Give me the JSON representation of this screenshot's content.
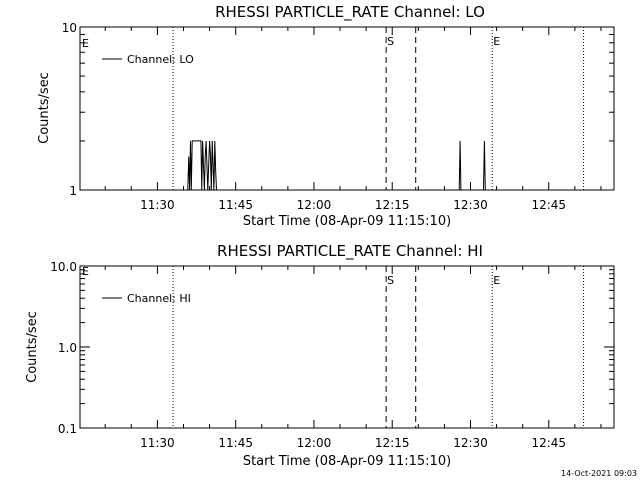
{
  "chart_data": [
    {
      "type": "line",
      "title": "RHESSI PARTICLE_RATE Channel: LO",
      "xlabel": "Start Time (08-Apr-09 11:15:10)",
      "ylabel": "Counts/sec",
      "yscale": "log",
      "xlim": [
        "11:15:10",
        "12:57:30"
      ],
      "ylim": [
        1,
        10
      ],
      "x_ticks": [
        "11:30",
        "11:45",
        "12:00",
        "12:15",
        "12:30",
        "12:45"
      ],
      "y_ticks": [
        "1",
        "10"
      ],
      "legend": {
        "position": "top-left",
        "entries": [
          "Channel: LO"
        ]
      },
      "series": [
        {
          "name": "Channel: LO",
          "x": [
            "11:35:50",
            "11:36:00",
            "11:36:10",
            "11:36:20",
            "11:36:30",
            "11:36:40",
            "11:36:50",
            "11:37:00",
            "11:37:10",
            "11:37:20",
            "11:37:30",
            "11:38:00",
            "11:38:20",
            "11:38:30",
            "11:38:40",
            "11:39:00",
            "11:39:10",
            "11:39:20",
            "11:39:40",
            "11:40:00",
            "11:40:10",
            "11:40:20",
            "11:40:30",
            "11:40:50",
            "11:41:00",
            "11:41:10",
            "11:41:20",
            "12:27:50",
            "12:28:00",
            "12:28:10",
            "12:28:20",
            "12:32:30",
            "12:32:40",
            "12:32:50",
            "12:33:00"
          ],
          "y": [
            1,
            1.6,
            1,
            2,
            1,
            2,
            2,
            2,
            2,
            2,
            2,
            2,
            2,
            1,
            2,
            1,
            1.6,
            2,
            1,
            2,
            1.6,
            1,
            2,
            1,
            2,
            1.3,
            1,
            1,
            2,
            1,
            1,
            1,
            2,
            1,
            1
          ]
        }
      ],
      "vertical_lines": [
        {
          "time": "11:33:00",
          "style": "dotted"
        },
        {
          "time": "12:13:50",
          "style": "dashed",
          "label": "S"
        },
        {
          "time": "12:19:30",
          "style": "dashed"
        },
        {
          "time": "12:34:10",
          "style": "dotted",
          "label": "E"
        },
        {
          "time": "12:51:40",
          "style": "dotted"
        }
      ],
      "edge_label": "E"
    },
    {
      "type": "line",
      "title": "RHESSI PARTICLE_RATE Channel: HI",
      "xlabel": "Start Time (08-Apr-09 11:15:10)",
      "ylabel": "Counts/sec",
      "yscale": "log",
      "xlim": [
        "11:15:10",
        "12:57:30"
      ],
      "ylim": [
        0.1,
        10
      ],
      "x_ticks": [
        "11:30",
        "11:45",
        "12:00",
        "12:15",
        "12:30",
        "12:45"
      ],
      "y_ticks": [
        "0.1",
        "1.0",
        "10.0"
      ],
      "legend": {
        "position": "top-left",
        "entries": [
          "Channel: HI"
        ]
      },
      "series": [
        {
          "name": "Channel: HI",
          "x": [],
          "y": []
        }
      ],
      "vertical_lines": [
        {
          "time": "11:33:00",
          "style": "dotted"
        },
        {
          "time": "12:13:50",
          "style": "dashed",
          "label": "S"
        },
        {
          "time": "12:19:30",
          "style": "dashed"
        },
        {
          "time": "12:34:10",
          "style": "dotted",
          "label": "E"
        },
        {
          "time": "12:51:40",
          "style": "dotted"
        }
      ],
      "edge_label": "E"
    }
  ],
  "footer": {
    "timestamp": "14-Oct-2021 09:03"
  }
}
